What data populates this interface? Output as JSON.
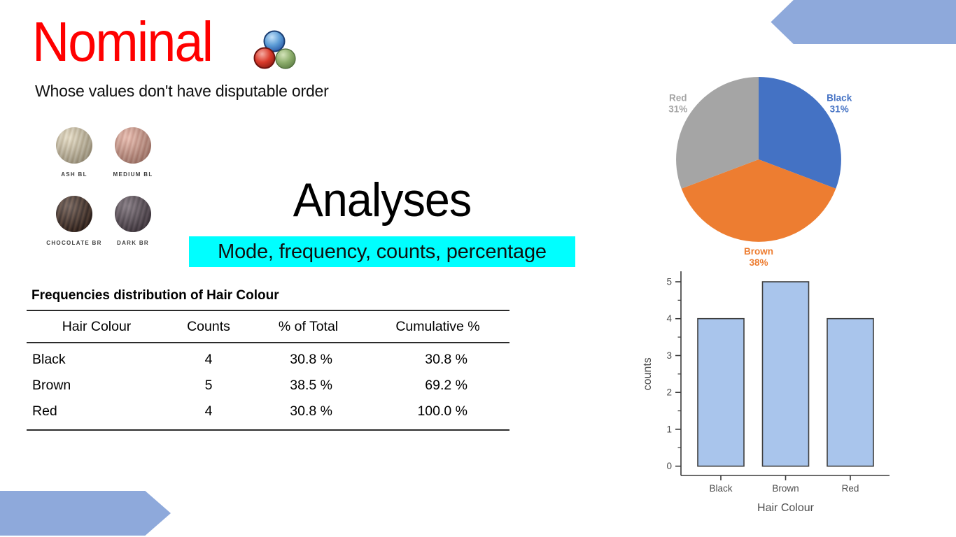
{
  "slide": {
    "title": "Nominal",
    "subtitle": "Whose values don't have disputable order",
    "analyses_heading": "Analyses",
    "highlight_text": "Mode, frequency, counts, percentage",
    "title_color": "#FF0000",
    "highlight_bg": "#00FFFF",
    "accent_color": "#8EA9DB"
  },
  "swatches": [
    {
      "label": "ASH BL",
      "base": "#C7B897",
      "streak": "#E8DEC4"
    },
    {
      "label": "MEDIUM BL",
      "base": "#CE8E7D",
      "streak": "#EBB6A6"
    },
    {
      "label": "CHOCOLATE BR",
      "base": "#2C1D19",
      "streak": "#5E4233"
    },
    {
      "label": "DARK BR",
      "base": "#473C45",
      "streak": "#6C5D68"
    }
  ],
  "table": {
    "title": "Frequencies distribution of Hair Colour",
    "columns": [
      "Hair Colour",
      "Counts",
      "% of Total",
      "Cumulative %"
    ],
    "rows": [
      [
        "Black",
        "4",
        "30.8 %",
        "30.8 %"
      ],
      [
        "Brown",
        "5",
        "38.5 %",
        "69.2 %"
      ],
      [
        "Red",
        "4",
        "30.8 %",
        "100.0 %"
      ]
    ]
  },
  "chart_data": [
    {
      "type": "pie",
      "categories": [
        "Black",
        "Brown",
        "Red"
      ],
      "values": [
        30.8,
        38.5,
        30.8
      ],
      "pct_labels": [
        "31%",
        "38%",
        "31%"
      ],
      "colors": [
        "#4472C4",
        "#ED7D31",
        "#A5A5A5"
      ],
      "start_angle_deg": 0,
      "direction": "clockwise",
      "legend_position": "none",
      "labels_outside": true
    },
    {
      "type": "bar",
      "categories": [
        "Black",
        "Brown",
        "Red"
      ],
      "values": [
        4,
        5,
        4
      ],
      "xlabel": "Hair Colour",
      "ylabel": "counts",
      "ylim": [
        0,
        5
      ],
      "yticks": [
        0,
        1,
        2,
        3,
        4,
        5
      ],
      "grid": false,
      "bar_fill": "#A9C5EC",
      "bar_stroke": "#3F3F3F",
      "axis_color": "#3A3A3A",
      "label_color": "#4D4D4D"
    }
  ]
}
